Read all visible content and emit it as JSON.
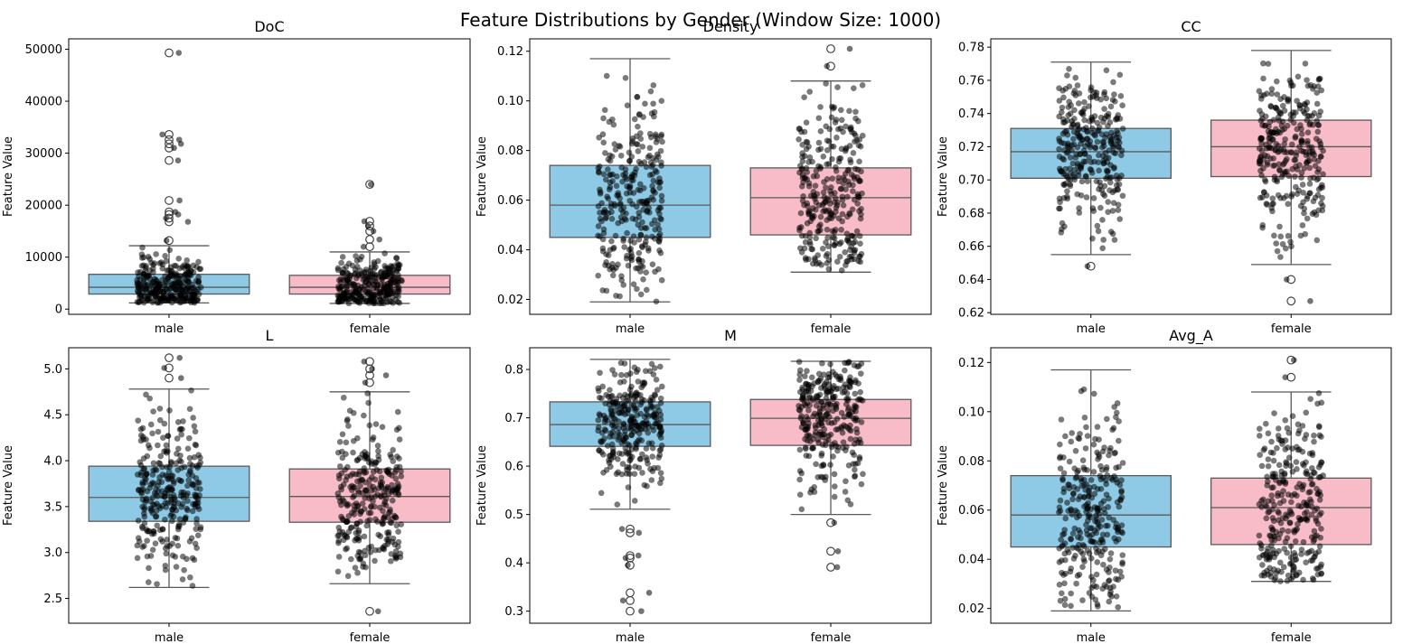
{
  "figure": {
    "title": "Feature Distributions by Gender (Window Size: 1000)"
  },
  "colors": {
    "male": "#8ecae6",
    "female": "#f7bcc8",
    "edge": "#5a5a5a",
    "points": "#000000"
  },
  "chart_data": [
    {
      "type": "box",
      "title": "DoC",
      "ylabel": "Feature Value",
      "ylim": [
        -1000,
        52000
      ],
      "yticks": [
        0,
        10000,
        20000,
        30000,
        40000,
        50000
      ],
      "ytick_labels": [
        "0",
        "10000",
        "20000",
        "30000",
        "40000",
        "50000"
      ],
      "categories": [
        "male",
        "female"
      ],
      "boxes": [
        {
          "q1": 2900,
          "median": 4200,
          "q3": 6700,
          "whislo": 1200,
          "whishi": 12200,
          "fliers": [
            13200,
            16800,
            17500,
            18200,
            18700,
            20900,
            28600,
            31000,
            31800,
            32600,
            33600,
            49300
          ]
        },
        {
          "q1": 2900,
          "median": 4200,
          "q3": 6500,
          "whislo": 1100,
          "whishi": 11000,
          "fliers": [
            12000,
            13400,
            15000,
            16000,
            16900,
            24000
          ]
        }
      ]
    },
    {
      "type": "box",
      "title": "Density",
      "ylabel": "Feature Value",
      "ylim": [
        0.014,
        0.125
      ],
      "yticks": [
        0.02,
        0.04,
        0.06,
        0.08,
        0.1,
        0.12
      ],
      "ytick_labels": [
        "0.02",
        "0.04",
        "0.06",
        "0.08",
        "0.10",
        "0.12"
      ],
      "categories": [
        "male",
        "female"
      ],
      "boxes": [
        {
          "q1": 0.045,
          "median": 0.058,
          "q3": 0.074,
          "whislo": 0.019,
          "whishi": 0.117,
          "fliers": []
        },
        {
          "q1": 0.046,
          "median": 0.061,
          "q3": 0.073,
          "whislo": 0.031,
          "whishi": 0.108,
          "fliers": [
            0.114,
            0.121
          ]
        }
      ]
    },
    {
      "type": "box",
      "title": "CC",
      "ylabel": "Feature Value",
      "ylim": [
        0.619,
        0.785
      ],
      "yticks": [
        0.62,
        0.64,
        0.66,
        0.68,
        0.7,
        0.72,
        0.74,
        0.76,
        0.78
      ],
      "ytick_labels": [
        "0.62",
        "0.64",
        "0.66",
        "0.68",
        "0.70",
        "0.72",
        "0.74",
        "0.76",
        "0.78"
      ],
      "categories": [
        "male",
        "female"
      ],
      "boxes": [
        {
          "q1": 0.701,
          "median": 0.717,
          "q3": 0.731,
          "whislo": 0.655,
          "whishi": 0.771,
          "fliers": [
            0.648
          ]
        },
        {
          "q1": 0.702,
          "median": 0.72,
          "q3": 0.736,
          "whislo": 0.649,
          "whishi": 0.778,
          "fliers": [
            0.64,
            0.627
          ]
        }
      ]
    },
    {
      "type": "box",
      "title": "L",
      "ylabel": "Feature Value",
      "ylim": [
        2.23,
        5.23
      ],
      "yticks": [
        2.5,
        3.0,
        3.5,
        4.0,
        4.5,
        5.0
      ],
      "ytick_labels": [
        "2.5",
        "3.0",
        "3.5",
        "4.0",
        "4.5",
        "5.0"
      ],
      "categories": [
        "male",
        "female"
      ],
      "boxes": [
        {
          "q1": 3.34,
          "median": 3.6,
          "q3": 3.94,
          "whislo": 2.62,
          "whishi": 4.78,
          "fliers": [
            4.9,
            5.01,
            5.12
          ]
        },
        {
          "q1": 3.33,
          "median": 3.61,
          "q3": 3.91,
          "whislo": 2.66,
          "whishi": 4.75,
          "fliers": [
            2.36,
            4.85,
            4.93,
            5.0,
            5.08
          ]
        }
      ]
    },
    {
      "type": "box",
      "title": "M",
      "ylabel": "Feature Value",
      "ylim": [
        0.275,
        0.845
      ],
      "yticks": [
        0.3,
        0.4,
        0.5,
        0.6,
        0.7,
        0.8
      ],
      "ytick_labels": [
        "0.3",
        "0.4",
        "0.5",
        "0.6",
        "0.7",
        "0.8"
      ],
      "categories": [
        "male",
        "female"
      ],
      "boxes": [
        {
          "q1": 0.641,
          "median": 0.686,
          "q3": 0.733,
          "whislo": 0.511,
          "whishi": 0.821,
          "fliers": [
            0.3,
            0.322,
            0.338,
            0.395,
            0.41,
            0.415,
            0.462,
            0.47
          ]
        },
        {
          "q1": 0.643,
          "median": 0.699,
          "q3": 0.738,
          "whislo": 0.5,
          "whishi": 0.817,
          "fliers": [
            0.391,
            0.424,
            0.483
          ]
        }
      ]
    },
    {
      "type": "box",
      "title": "Avg_A",
      "ylabel": "Feature Value",
      "ylim": [
        0.014,
        0.126
      ],
      "yticks": [
        0.02,
        0.04,
        0.06,
        0.08,
        0.1,
        0.12
      ],
      "ytick_labels": [
        "0.02",
        "0.04",
        "0.06",
        "0.08",
        "0.10",
        "0.12"
      ],
      "categories": [
        "male",
        "female"
      ],
      "boxes": [
        {
          "q1": 0.045,
          "median": 0.058,
          "q3": 0.074,
          "whislo": 0.019,
          "whishi": 0.117,
          "fliers": []
        },
        {
          "q1": 0.046,
          "median": 0.061,
          "q3": 0.073,
          "whislo": 0.031,
          "whishi": 0.108,
          "fliers": [
            0.114,
            0.121
          ]
        }
      ]
    }
  ]
}
